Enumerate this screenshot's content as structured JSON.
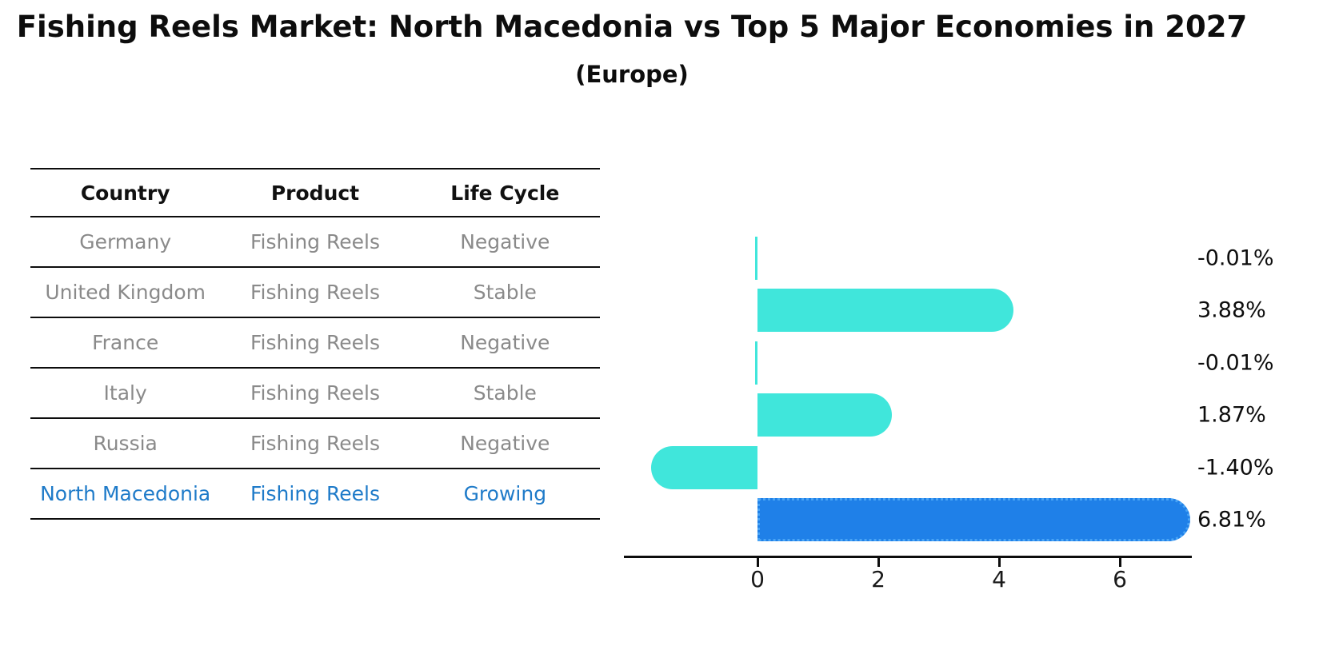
{
  "title": "Fishing Reels Market: North Macedonia vs Top 5 Major Economies in 2027",
  "subtitle": "(Europe)",
  "table": {
    "headers": [
      "Country",
      "Product",
      "Life Cycle"
    ],
    "rows": [
      {
        "country": "Germany",
        "product": "Fishing Reels",
        "life_cycle": "Negative",
        "highlight": false
      },
      {
        "country": "United Kingdom",
        "product": "Fishing Reels",
        "life_cycle": "Stable",
        "highlight": false
      },
      {
        "country": "France",
        "product": "Fishing Reels",
        "life_cycle": "Negative",
        "highlight": false
      },
      {
        "country": "Italy",
        "product": "Fishing Reels",
        "life_cycle": "Stable",
        "highlight": false
      },
      {
        "country": "Russia",
        "product": "Fishing Reels",
        "life_cycle": "Negative",
        "highlight": false
      },
      {
        "country": "North Macedonia",
        "product": "Fishing Reels",
        "life_cycle": "Growing",
        "highlight": true
      }
    ]
  },
  "chart_data": {
    "type": "bar",
    "orientation": "horizontal",
    "categories": [
      "Germany",
      "United Kingdom",
      "France",
      "Italy",
      "Russia",
      "North Macedonia"
    ],
    "values": [
      -0.01,
      3.88,
      -0.01,
      1.87,
      -1.4,
      6.81
    ],
    "value_labels": [
      "-0.01%",
      "3.88%",
      "-0.01%",
      "1.87%",
      "-1.40%",
      "6.81%"
    ],
    "xticks": [
      0,
      2,
      4,
      6
    ],
    "xlim": [
      -1.8,
      7.2
    ],
    "grid": false,
    "legend": null,
    "highlight_index": 5,
    "bar_color": "#40e6db",
    "highlight_color": "#1f80e8",
    "highlight_border_color": "#49a4f5",
    "axis_color": "#0d0d0d"
  }
}
